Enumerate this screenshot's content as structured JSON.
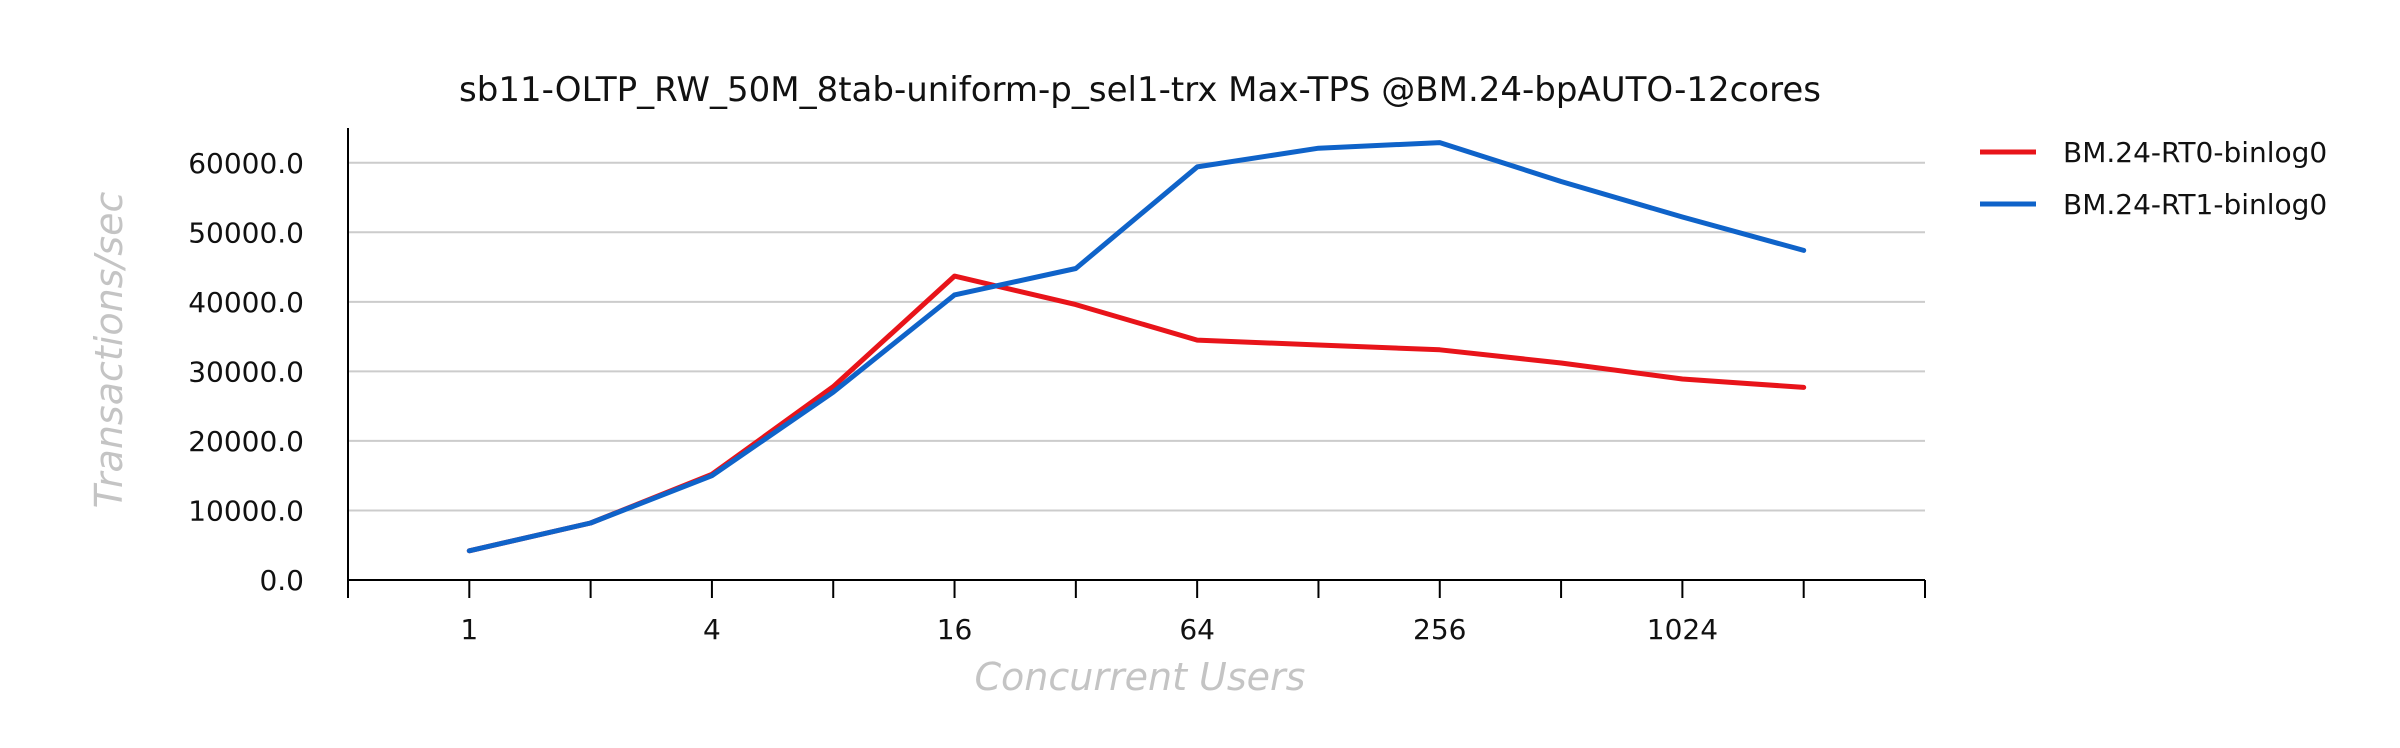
{
  "chart_data": {
    "type": "line",
    "title": "sb11-OLTP_RW_50M_8tab-uniform-p_sel1-trx Max-TPS @BM.24-bpAUTO-12cores",
    "xlabel": "Concurrent Users",
    "ylabel": "Transactions/sec",
    "x_scale": "log2",
    "x": [
      1,
      2,
      4,
      8,
      16,
      32,
      64,
      128,
      256,
      512,
      1024,
      2048
    ],
    "x_tick_labels": [
      "1",
      "4",
      "16",
      "64",
      "256",
      "1024"
    ],
    "x_tick_values": [
      1,
      4,
      16,
      64,
      256,
      1024
    ],
    "xlim": [
      0.5,
      4096
    ],
    "ylim": [
      0,
      65000
    ],
    "y_ticks": [
      0,
      10000,
      20000,
      30000,
      40000,
      50000,
      60000
    ],
    "y_tick_labels": [
      "0.0",
      "10000.0",
      "20000.0",
      "30000.0",
      "40000.0",
      "50000.0",
      "60000.0"
    ],
    "grid": "horizontal",
    "legend_position": "top-right, outside plot",
    "series": [
      {
        "name": "BM.24-RT0-binlog0",
        "color": "#e8141a",
        "values": [
          4200,
          8200,
          15200,
          27800,
          43700,
          39600,
          34500,
          33800,
          33100,
          31200,
          28900,
          27700
        ]
      },
      {
        "name": "BM.24-RT1-binlog0",
        "color": "#0f63c9",
        "values": [
          4200,
          8200,
          15000,
          27000,
          41000,
          44800,
          59400,
          62100,
          62900,
          57300,
          52200,
          47400
        ]
      }
    ]
  }
}
